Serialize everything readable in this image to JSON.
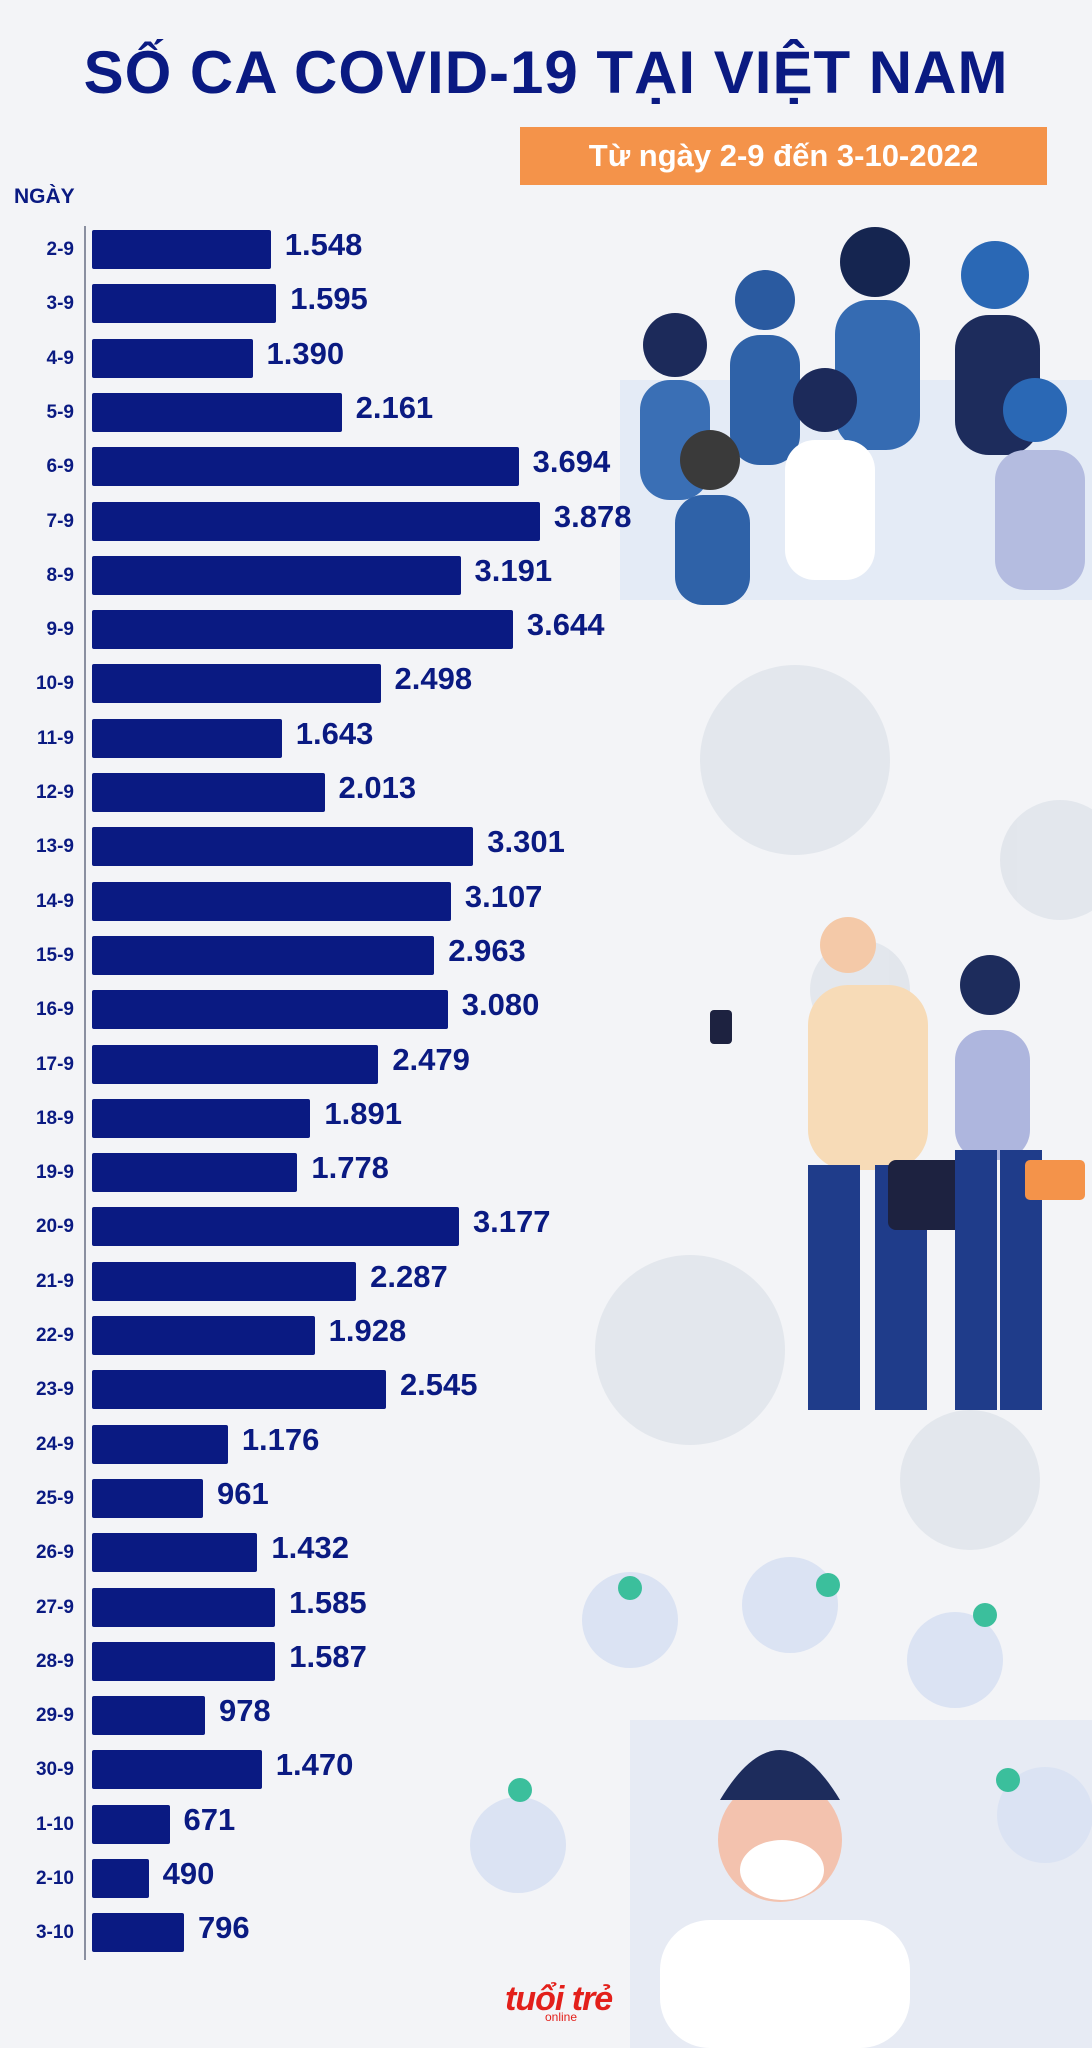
{
  "title": "SỐ CA COVID-19 TẠI VIỆT NAM",
  "subtitle": "Từ ngày 2-9 đến 3-10-2022",
  "brand": {
    "name": "tuổi trẻ",
    "sub": "online"
  },
  "colors": {
    "bar": "#0a1a82",
    "accent": "#f4934a",
    "title": "#0a1a82"
  },
  "chart_data": {
    "type": "bar",
    "orientation": "horizontal",
    "ylabel": "NGÀY",
    "grid": false,
    "legend": "none",
    "categories": [
      "2-9",
      "3-9",
      "4-9",
      "5-9",
      "6-9",
      "7-9",
      "8-9",
      "9-9",
      "10-9",
      "11-9",
      "12-9",
      "13-9",
      "14-9",
      "15-9",
      "16-9",
      "17-9",
      "18-9",
      "19-9",
      "20-9",
      "21-9",
      "22-9",
      "23-9",
      "24-9",
      "25-9",
      "26-9",
      "27-9",
      "28-9",
      "29-9",
      "30-9",
      "1-10",
      "2-10",
      "3-10"
    ],
    "values": [
      1548,
      1595,
      1390,
      2161,
      3694,
      3878,
      3191,
      3644,
      2498,
      1643,
      2013,
      3301,
      3107,
      2963,
      3080,
      2479,
      1891,
      1778,
      3177,
      2287,
      1928,
      2545,
      1176,
      961,
      1432,
      1585,
      1587,
      978,
      1470,
      671,
      490,
      796
    ],
    "value_labels": [
      "1.548",
      "1.595",
      "1.390",
      "2.161",
      "3.694",
      "3.878",
      "3.191",
      "3.644",
      "2.498",
      "1.643",
      "2.013",
      "3.301",
      "3.107",
      "2.963",
      "3.080",
      "2.479",
      "1.891",
      "1.778",
      "3.177",
      "2.287",
      "1.928",
      "2.545",
      "1.176",
      "961",
      "1.432",
      "1.585",
      "1.587",
      "978",
      "1.470",
      "671",
      "490",
      "796"
    ]
  }
}
